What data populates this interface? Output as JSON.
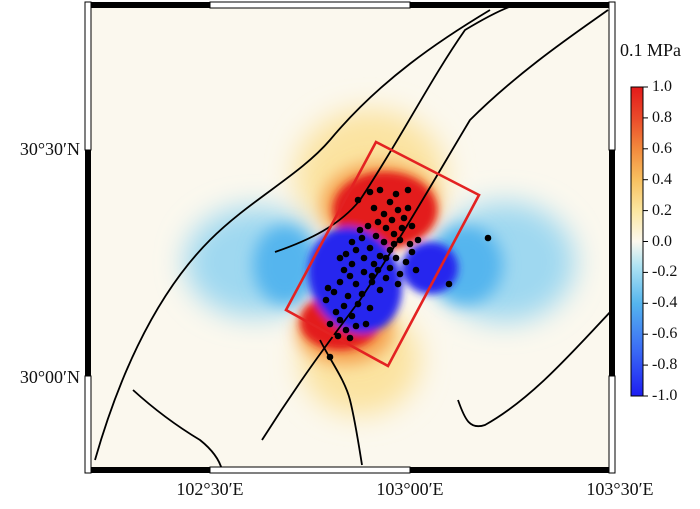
{
  "map": {
    "lat_labels": [
      "30°30′N",
      "30°00′N"
    ],
    "lon_labels": [
      "102°30′E",
      "103°00′E",
      "103°30′E"
    ],
    "colorbar": {
      "title": "0.1 MPa",
      "ticks": [
        "1.0",
        "0.8",
        "0.6",
        "0.4",
        "0.2",
        "0.0",
        "-0.2",
        "-0.4",
        "-0.6",
        "-0.8",
        "-1.0"
      ],
      "colors": [
        "#1d1df2",
        "#3b6cf5",
        "#55b5ee",
        "#aee3f2",
        "#fbf8ee",
        "#fbe6a0",
        "#f8c060",
        "#f28a3d",
        "#ea4a2a",
        "#e31a1a"
      ]
    },
    "rupture_box_color": "#e32222",
    "fault_color": "#000000",
    "event_color": "#000000"
  }
}
